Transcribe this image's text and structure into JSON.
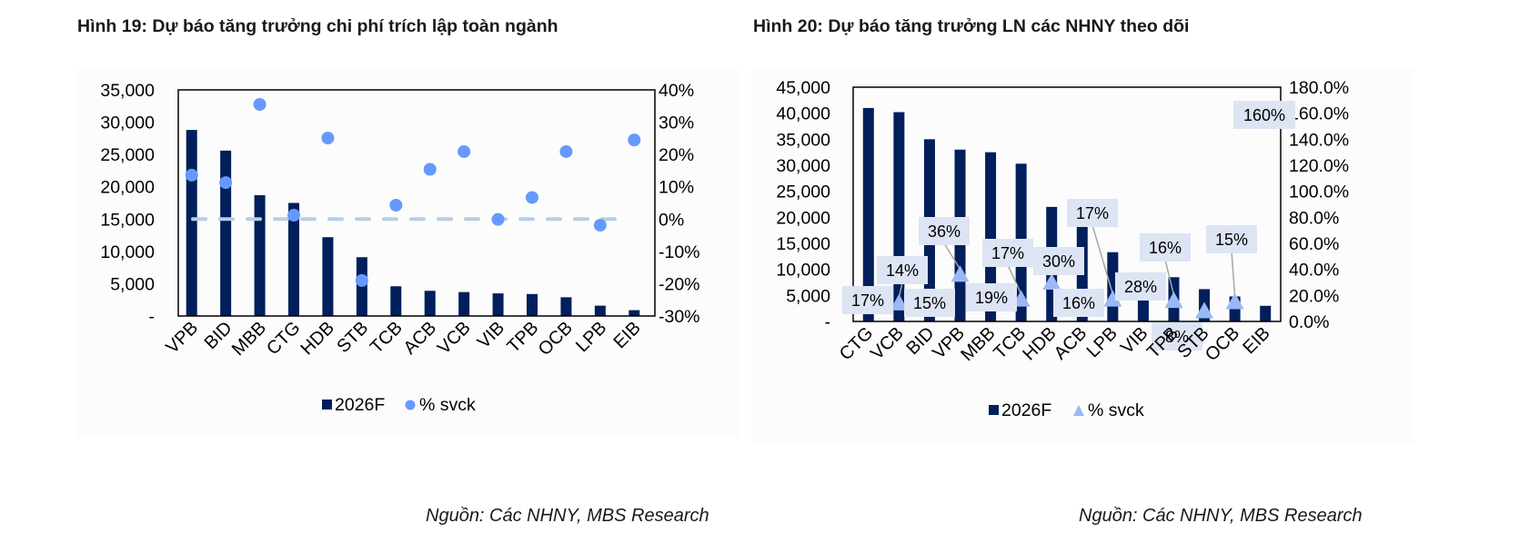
{
  "figures": [
    {
      "title": "Hình 19: Dự báo tăng trưởng chi phí trích lập toàn ngành",
      "source": "Nguồn: Các NHNY, MBS Research",
      "legend": {
        "bar": "2026F",
        "marker": "% svck"
      }
    },
    {
      "title": "Hình 20: Dự báo tăng trưởng LN các NHNY theo dõi",
      "source": "Nguồn: Các NHNY, MBS Research",
      "legend": {
        "bar": "2026F",
        "marker": "% svck"
      }
    }
  ],
  "colors": {
    "bar": "#001f5b",
    "dot": "#6699ff",
    "triangle": "#99b8f5",
    "label_bg": "#dde4f3",
    "zero_line": "#b8cde6",
    "leader": "#a6a6a6"
  },
  "chart_data": [
    {
      "type": "bar",
      "title": "Hình 19: Dự báo tăng trưởng chi phí trích lập toàn ngành",
      "categories": [
        "VPB",
        "BID",
        "MBB",
        "CTG",
        "HDB",
        "STB",
        "TCB",
        "ACB",
        "VCB",
        "VIB",
        "TPB",
        "OCB",
        "LPB",
        "EIB"
      ],
      "series": [
        {
          "name": "2026F",
          "type": "bar",
          "axis": "left",
          "values": [
            28800,
            25600,
            18700,
            17500,
            12200,
            9100,
            4600,
            3900,
            3700,
            3500,
            3400,
            2900,
            1600,
            900
          ]
        },
        {
          "name": "% svck",
          "type": "scatter",
          "axis": "right",
          "marker": "circle",
          "values": [
            13.6,
            11.3,
            35.5,
            1.2,
            25.1,
            -19.0,
            4.3,
            15.4,
            20.9,
            -0.1,
            6.7,
            20.9,
            -1.9,
            24.5
          ]
        }
      ],
      "left_axis": {
        "ylim": [
          0,
          35000
        ],
        "ticks": [
          "-",
          "5,000",
          "10,000",
          "15,000",
          "20,000",
          "25,000",
          "30,000",
          "35,000"
        ]
      },
      "right_axis": {
        "ylim": [
          -30,
          40
        ],
        "ticks": [
          "-30%",
          "-20%",
          "-10%",
          "0%",
          "10%",
          "20%",
          "30%",
          "40%"
        ]
      },
      "annotations": [
        "dashed zero line on right axis"
      ],
      "legend_position": "bottom",
      "grid": false
    },
    {
      "type": "bar",
      "title": "Hình 20: Dự báo tăng trưởng LN các NHNY theo dõi",
      "categories": [
        "CTG",
        "VCB",
        "BID",
        "VPB",
        "MBB",
        "TCB",
        "HDB",
        "ACB",
        "LPB",
        "VIB",
        "TPB",
        "STB",
        "OCB",
        "EIB"
      ],
      "series": [
        {
          "name": "2026F",
          "type": "bar",
          "axis": "left",
          "values": [
            41000,
            40200,
            35000,
            33000,
            32500,
            30300,
            22000,
            18500,
            13300,
            5600,
            8500,
            6200,
            4800,
            3000
          ]
        },
        {
          "name": "% svck",
          "type": "scatter",
          "axis": "right",
          "marker": "triangle",
          "values": [
            17,
            14,
            15,
            36,
            19,
            17,
            30,
            16,
            17,
            28,
            16,
            8,
            15,
            160
          ],
          "labels": [
            "17%",
            "14%",
            "15%",
            "36%",
            "19%",
            "17%",
            "30%",
            "16%",
            "17%",
            "28%",
            "16%",
            "8%",
            "15%",
            "160%"
          ]
        }
      ],
      "left_axis": {
        "ylim": [
          0,
          45000
        ],
        "ticks": [
          "-",
          "5,000",
          "10,000",
          "15,000",
          "20,000",
          "25,000",
          "30,000",
          "35,000",
          "40,000",
          "45,000"
        ]
      },
      "right_axis": {
        "ylim": [
          0,
          180
        ],
        "ticks": [
          "0.0%",
          "20.0%",
          "40.0%",
          "60.0%",
          "80.0%",
          "100.0%",
          "120.0%",
          "140.0%",
          "160.0%",
          "180.0%"
        ]
      },
      "legend_position": "bottom",
      "grid": false
    }
  ]
}
